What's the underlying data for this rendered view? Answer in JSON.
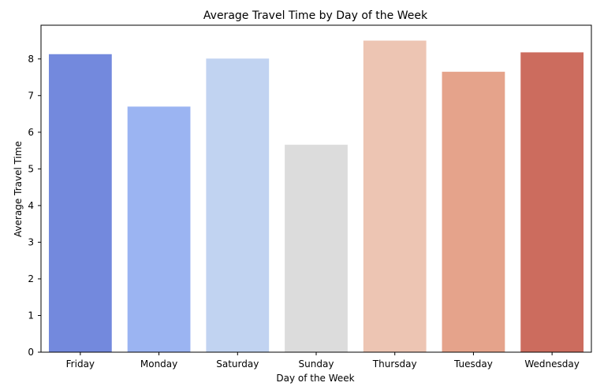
{
  "chart_data": {
    "type": "bar",
    "title": "Average Travel Time by Day of the Week",
    "xlabel": "Day of the Week",
    "ylabel": "Average Travel Time",
    "categories": [
      "Friday",
      "Monday",
      "Saturday",
      "Sunday",
      "Thursday",
      "Tuesday",
      "Wednesday"
    ],
    "values": [
      8.13,
      6.7,
      8.01,
      5.66,
      8.5,
      7.65,
      8.18
    ],
    "colors": [
      "#7389dd",
      "#9bb4f2",
      "#c1d3f1",
      "#dcdcdc",
      "#edc5b3",
      "#e5a38b",
      "#cc6c5e"
    ],
    "ylim": [
      0,
      8.92
    ],
    "yticks": [
      0,
      1,
      2,
      3,
      4,
      5,
      6,
      7,
      8
    ],
    "grid": false,
    "legend": "none"
  }
}
